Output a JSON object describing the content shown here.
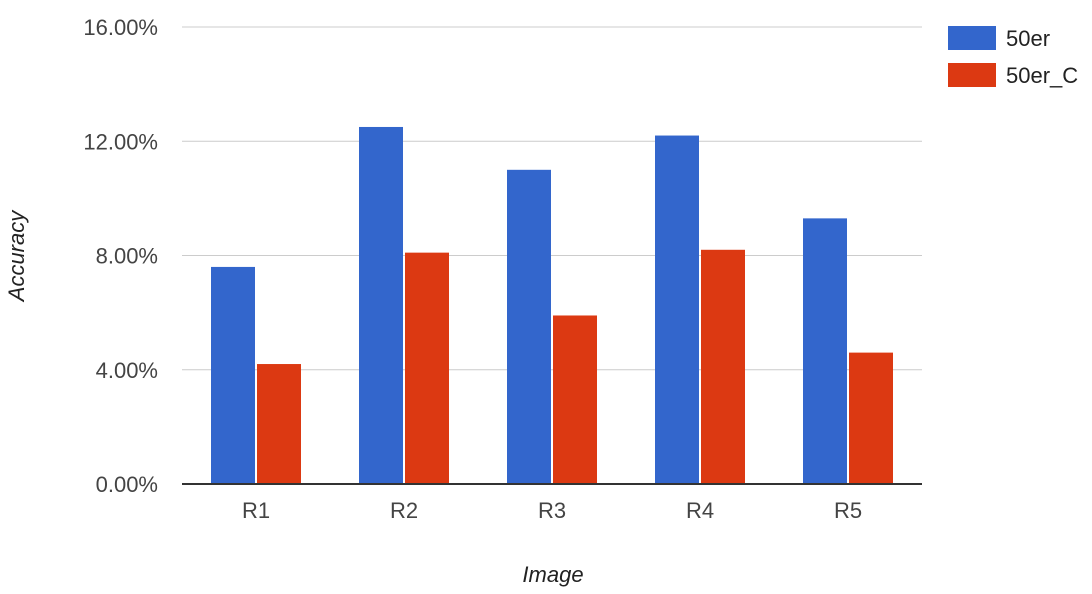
{
  "chart_data": {
    "type": "bar",
    "categories": [
      "R1",
      "R2",
      "R3",
      "R4",
      "R5"
    ],
    "series": [
      {
        "name": "50er",
        "values": [
          7.6,
          12.5,
          11.0,
          12.2,
          9.3
        ],
        "color": "#3366cc"
      },
      {
        "name": "50er_C",
        "values": [
          4.2,
          8.1,
          5.9,
          8.2,
          4.6
        ],
        "color": "#dc3912"
      }
    ],
    "yticks": [
      "0.00%",
      "4.00%",
      "8.00%",
      "12.00%",
      "16.00%"
    ],
    "ylim": [
      0,
      16
    ],
    "xlabel": "Image",
    "ylabel": "Accuracy",
    "grid": true,
    "legend": "right"
  }
}
